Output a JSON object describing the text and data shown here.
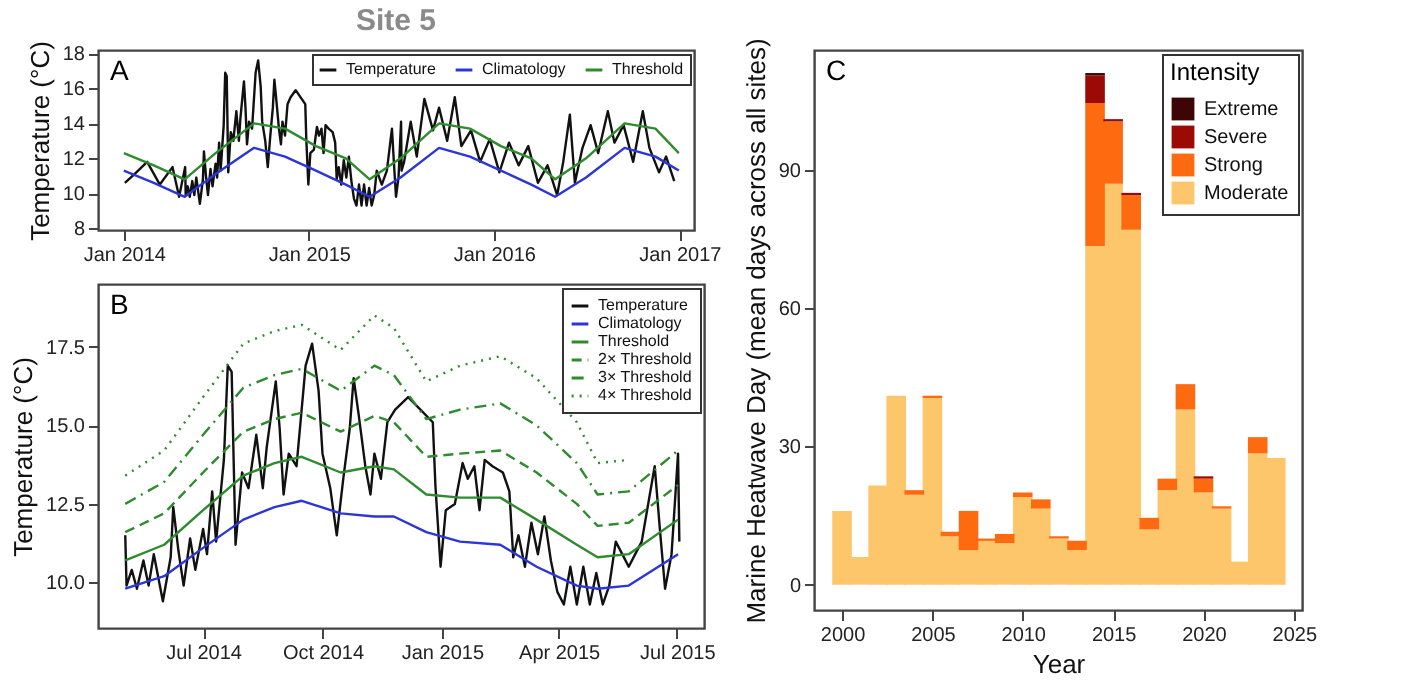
{
  "chart_data": [
    {
      "type": "line",
      "title": "Site 5",
      "ylabel": "Temperature (°C)",
      "annotations": [
        "A"
      ],
      "legend": "top right",
      "xlim": [
        "2013-11-11",
        "2017-01-30"
      ],
      "ylim": [
        7.9,
        18.2
      ],
      "xticks": [
        {
          "value": "2014-01-01",
          "label": "Jan 2014"
        },
        {
          "value": "2015-01-01",
          "label": "Jan 2015"
        },
        {
          "value": "2016-01-01",
          "label": "Jan 2016"
        },
        {
          "value": "2017-01-01",
          "label": "Jan 2017"
        }
      ],
      "yticks": [
        8,
        10,
        12,
        14,
        16,
        18
      ],
      "series": [
        {
          "name": "Temperature",
          "color": "#111111",
          "line_style": "solid",
          "x": [
            "2014-01-03",
            "2014-01-22",
            "2014-02-16",
            "2014-03-13",
            "2014-04-07",
            "2014-04-20",
            "2014-05-02",
            "2014-05-03",
            "2014-05-07",
            "2014-05-11",
            "2014-05-16",
            "2014-05-20",
            "2014-05-24",
            "2014-05-31",
            "2014-06-06",
            "2014-06-08",
            "2014-06-12",
            "2014-06-16",
            "2014-06-21",
            "2014-06-25",
            "2014-07-01",
            "2014-07-04",
            "2014-07-08",
            "2014-07-11",
            "2014-07-17",
            "2014-07-20",
            "2014-07-23",
            "2014-07-26",
            "2014-07-31",
            "2014-08-05",
            "2014-08-11",
            "2014-08-16",
            "2014-08-19",
            "2014-08-26",
            "2014-08-29",
            "2014-09-01",
            "2014-09-05",
            "2014-09-11",
            "2014-09-18",
            "2014-09-23",
            "2014-09-28",
            "2014-10-01",
            "2014-10-07",
            "2014-10-12",
            "2014-10-17",
            "2014-10-22",
            "2014-10-25",
            "2014-10-29",
            "2014-11-03",
            "2014-11-07",
            "2014-11-10",
            "2014-11-15",
            "2014-11-20",
            "2014-11-26",
            "2014-12-06",
            "2014-12-25",
            "2014-12-27",
            "2014-12-31",
            "2015-01-04",
            "2015-01-11",
            "2015-01-17",
            "2015-01-21",
            "2015-01-26",
            "2015-01-30",
            "2015-02-03",
            "2015-02-09",
            "2015-02-17",
            "2015-02-22",
            "2015-02-25",
            "2015-03-01",
            "2015-03-06",
            "2015-03-11",
            "2015-03-16",
            "2015-03-21",
            "2015-03-26",
            "2015-03-31",
            "2015-04-05",
            "2015-04-10",
            "2015-04-15",
            "2015-04-20",
            "2015-04-25",
            "2015-04-30",
            "2015-05-05",
            "2015-05-10",
            "2015-05-15",
            "2015-05-20",
            "2015-05-25",
            "2015-05-30",
            "2015-06-04",
            "2015-06-09",
            "2015-06-14",
            "2015-06-18",
            "2015-06-22",
            "2015-06-27",
            "2015-07-02",
            "2015-07-03",
            "2015-07-08",
            "2015-07-21",
            "2015-08-02",
            "2015-08-17",
            "2015-09-03",
            "2015-09-15",
            "2015-10-01",
            "2015-10-16",
            "2015-10-29",
            "2015-11-17",
            "2015-12-05",
            "2015-12-24",
            "2016-01-12",
            "2016-01-31",
            "2016-02-19",
            "2016-03-09",
            "2016-03-28",
            "2016-04-16",
            "2016-05-05",
            "2016-05-17",
            "2016-05-30",
            "2016-06-09",
            "2016-06-24",
            "2016-07-10",
            "2016-07-25",
            "2016-08-13",
            "2016-08-26",
            "2016-09-13",
            "2016-10-02",
            "2016-10-21",
            "2016-11-03",
            "2016-11-22",
            "2016-12-06",
            "2016-12-22"
          ],
          "values": [
            10.6,
            11.1,
            11.8,
            10.5,
            11.5,
            9.8,
            11.5,
            9.9,
            10.4,
            9.8,
            10.7,
            9.9,
            10.9,
            9.4,
            10.8,
            12.4,
            11.0,
            9.9,
            11.4,
            10.4,
            11.7,
            10.9,
            12.9,
            11.3,
            13.9,
            16.9,
            16.7,
            11.2,
            13.5,
            13.0,
            14.7,
            13.0,
            14.3,
            16.4,
            14.9,
            12.8,
            14.1,
            13.7,
            16.9,
            17.6,
            16.1,
            14.1,
            13.0,
            11.5,
            13.3,
            14.9,
            16.5,
            15.3,
            13.7,
            12.8,
            14.1,
            13.3,
            15.1,
            15.5,
            15.9,
            15.1,
            13.1,
            10.5,
            12.3,
            12.5,
            13.8,
            13.3,
            13.7,
            12.3,
            13.9,
            13.7,
            13.5,
            12.9,
            10.8,
            11.5,
            10.5,
            11.9,
            10.9,
            12.1,
            10.7,
            9.7,
            9.3,
            10.5,
            9.3,
            10.5,
            9.3,
            10.3,
            9.3,
            9.9,
            11.3,
            10.9,
            10.5,
            10.9,
            11.3,
            12.5,
            13.7,
            11.7,
            9.8,
            10.9,
            14.1,
            11.3,
            11.8,
            14.1,
            12.1,
            15.4,
            13.6,
            14.9,
            13.0,
            15.5,
            12.7,
            13.6,
            11.8,
            13.1,
            11.2,
            12.9,
            11.6,
            12.7,
            10.6,
            11.6,
            9.9,
            11.8,
            14.5,
            10.6,
            12.6,
            13.9,
            12.3,
            14.7,
            12.9,
            13.9,
            11.8,
            14.7,
            12.6,
            11.2,
            12.1,
            10.7
          ]
        },
        {
          "name": "Climatology",
          "color": "#2b35d8",
          "line_style": "solid",
          "x": [
            "2014-01-01",
            "2014-03-01",
            "2014-05-01",
            "2014-07-01",
            "2014-09-15",
            "2014-11-15",
            "2015-01-15",
            "2015-03-15",
            "2015-05-01",
            "2015-07-01",
            "2015-09-15",
            "2015-11-15",
            "2016-01-15",
            "2016-03-15",
            "2016-05-01",
            "2016-07-01",
            "2016-09-15",
            "2016-11-15",
            "2016-12-31"
          ],
          "values": [
            11.3,
            10.6,
            9.8,
            11.1,
            12.6,
            12.1,
            11.3,
            10.5,
            9.8,
            10.9,
            12.6,
            12.1,
            11.3,
            10.5,
            9.8,
            10.9,
            12.6,
            12.1,
            11.3
          ]
        },
        {
          "name": "Threshold",
          "color": "#2e8b2e",
          "line_style": "solid",
          "x": [
            "2014-01-01",
            "2014-03-01",
            "2014-05-01",
            "2014-07-01",
            "2014-09-15",
            "2014-11-15",
            "2015-01-15",
            "2015-03-15",
            "2015-05-01",
            "2015-07-01",
            "2015-09-15",
            "2015-11-15",
            "2016-01-15",
            "2016-03-15",
            "2016-05-01",
            "2016-07-01",
            "2016-09-15",
            "2016-11-15",
            "2016-12-31"
          ],
          "values": [
            12.3,
            11.6,
            10.8,
            12.3,
            14.0,
            13.7,
            12.7,
            12.0,
            10.8,
            12.0,
            14.0,
            13.7,
            12.7,
            12.0,
            10.8,
            12.0,
            14.0,
            13.7,
            12.3
          ]
        }
      ]
    },
    {
      "type": "line",
      "ylabel": "Temperature (°C)",
      "annotations": [
        "B"
      ],
      "legend": "top right",
      "xlim": [
        "2014-04-11",
        "2015-07-22"
      ],
      "ylim": [
        8.55,
        19.5
      ],
      "xticks": [
        {
          "value": "2014-07-01",
          "label": "Jul 2014"
        },
        {
          "value": "2014-10-01",
          "label": "Oct 2014"
        },
        {
          "value": "2015-01-01",
          "label": "Jan 2015"
        },
        {
          "value": "2015-04-01",
          "label": "Apr 2015"
        },
        {
          "value": "2015-07-01",
          "label": "Jul 2015"
        }
      ],
      "yticks": [
        {
          "value": 10,
          "label": "10.0"
        },
        {
          "value": 12.5,
          "label": "12.5"
        },
        {
          "value": 15,
          "label": "15.0"
        },
        {
          "value": 17.5,
          "label": "17.5"
        }
      ],
      "series": [
        {
          "name": "Temperature",
          "color": "#111111",
          "line_style": "solid",
          "x": [
            "2014-05-02",
            "2014-05-03",
            "2014-05-07",
            "2014-05-11",
            "2014-05-16",
            "2014-05-20",
            "2014-05-24",
            "2014-05-31",
            "2014-06-06",
            "2014-06-08",
            "2014-06-12",
            "2014-06-16",
            "2014-06-21",
            "2014-06-25",
            "2014-07-01",
            "2014-07-04",
            "2014-07-08",
            "2014-07-11",
            "2014-07-17",
            "2014-07-20",
            "2014-07-23",
            "2014-07-26",
            "2014-07-31",
            "2014-08-05",
            "2014-08-11",
            "2014-08-16",
            "2014-08-19",
            "2014-08-26",
            "2014-08-29",
            "2014-09-01",
            "2014-09-05",
            "2014-09-11",
            "2014-09-18",
            "2014-09-23",
            "2014-09-28",
            "2014-10-01",
            "2014-10-07",
            "2014-10-12",
            "2014-10-17",
            "2014-10-22",
            "2014-10-25",
            "2014-10-29",
            "2014-11-03",
            "2014-11-07",
            "2014-11-10",
            "2014-11-15",
            "2014-11-20",
            "2014-11-26",
            "2014-12-06",
            "2014-12-25",
            "2014-12-27",
            "2014-12-31",
            "2015-01-04",
            "2015-01-11",
            "2015-01-17",
            "2015-01-21",
            "2015-01-26",
            "2015-01-30",
            "2015-02-03",
            "2015-02-09",
            "2015-02-17",
            "2015-02-22",
            "2015-02-25",
            "2015-03-01",
            "2015-03-06",
            "2015-03-11",
            "2015-03-16",
            "2015-03-21",
            "2015-03-26",
            "2015-03-31",
            "2015-04-05",
            "2015-04-10",
            "2015-04-15",
            "2015-04-20",
            "2015-04-25",
            "2015-04-30",
            "2015-05-05",
            "2015-05-10",
            "2015-05-15",
            "2015-05-20",
            "2015-05-25",
            "2015-05-30",
            "2015-06-04",
            "2015-06-09",
            "2015-06-14",
            "2015-06-18",
            "2015-06-22",
            "2015-06-27",
            "2015-07-02",
            "2015-07-03"
          ],
          "values": [
            11.5,
            9.9,
            10.4,
            9.8,
            10.7,
            9.9,
            10.9,
            9.4,
            10.8,
            12.4,
            11.0,
            9.9,
            11.4,
            10.4,
            11.7,
            10.9,
            12.9,
            11.3,
            13.9,
            16.9,
            16.7,
            11.2,
            13.5,
            13.0,
            14.7,
            13.0,
            14.3,
            16.4,
            14.9,
            12.8,
            14.1,
            13.7,
            16.9,
            17.6,
            16.1,
            14.1,
            13.0,
            11.5,
            13.3,
            14.9,
            16.5,
            15.3,
            13.7,
            12.8,
            14.1,
            13.3,
            15.1,
            15.5,
            15.9,
            15.1,
            13.1,
            10.5,
            12.3,
            12.5,
            13.8,
            13.3,
            13.7,
            12.3,
            13.9,
            13.7,
            13.5,
            12.9,
            10.8,
            11.5,
            10.5,
            11.9,
            10.9,
            12.1,
            10.7,
            9.7,
            9.3,
            10.5,
            9.3,
            10.5,
            9.3,
            10.3,
            9.3,
            9.9,
            11.3,
            10.9,
            10.5,
            10.9,
            11.3,
            12.5,
            13.7,
            11.7,
            9.8,
            10.9,
            14.1,
            11.3
          ]
        },
        {
          "name": "Climatology",
          "color": "#2b35d8",
          "line_style": "solid",
          "x": [
            "2014-05-02",
            "2014-06-01",
            "2014-07-01",
            "2014-08-01",
            "2014-08-25",
            "2014-09-15",
            "2014-10-15",
            "2014-11-10",
            "2014-11-25",
            "2014-12-20",
            "2015-01-15",
            "2015-02-15",
            "2015-03-15",
            "2015-04-15",
            "2015-05-01",
            "2015-05-25",
            "2015-07-02"
          ],
          "values": [
            9.8,
            10.2,
            11.1,
            12.0,
            12.4,
            12.6,
            12.2,
            12.1,
            12.1,
            11.6,
            11.3,
            11.2,
            10.5,
            9.9,
            9.8,
            9.9,
            10.9
          ]
        },
        {
          "name": "Threshold",
          "color": "#2e8b2e",
          "line_style": "solid",
          "x": [
            "2014-05-02",
            "2014-06-01",
            "2014-07-01",
            "2014-08-01",
            "2014-08-25",
            "2014-09-15",
            "2014-10-15",
            "2014-11-10",
            "2014-11-25",
            "2014-12-20",
            "2015-01-15",
            "2015-02-15",
            "2015-03-15",
            "2015-04-15",
            "2015-05-01",
            "2015-05-25",
            "2015-07-02"
          ],
          "values": [
            10.7,
            11.2,
            12.3,
            13.4,
            13.8,
            14.0,
            13.5,
            13.7,
            13.6,
            12.8,
            12.7,
            12.7,
            12.0,
            11.2,
            10.8,
            10.9,
            12.0
          ]
        },
        {
          "name": "2× Threshold",
          "color": "#2e8b2e",
          "line_style": "dashed",
          "x": [
            "2014-05-02",
            "2014-06-01",
            "2014-07-01",
            "2014-08-01",
            "2014-08-25",
            "2014-09-15",
            "2014-10-15",
            "2014-11-10",
            "2014-11-25",
            "2014-12-20",
            "2015-01-15",
            "2015-02-15",
            "2015-03-15",
            "2015-04-15",
            "2015-05-01",
            "2015-05-25",
            "2015-07-02"
          ],
          "values": [
            11.6,
            12.2,
            13.5,
            14.8,
            15.2,
            15.4,
            14.8,
            15.3,
            15.1,
            14.0,
            14.1,
            14.2,
            13.5,
            12.5,
            11.8,
            11.9,
            13.1
          ]
        },
        {
          "name": "3× Threshold",
          "color": "#2e8b2e",
          "line_style": "dashdot",
          "x": [
            "2014-05-02",
            "2014-06-01",
            "2014-07-01",
            "2014-08-01",
            "2014-08-25",
            "2014-09-15",
            "2014-10-15",
            "2014-11-10",
            "2014-11-25",
            "2014-12-20",
            "2015-01-15",
            "2015-02-15",
            "2015-03-15",
            "2015-04-15",
            "2015-05-01",
            "2015-05-25",
            "2015-07-02"
          ],
          "values": [
            12.5,
            13.2,
            14.7,
            16.2,
            16.6,
            16.8,
            16.1,
            16.9,
            16.6,
            15.2,
            15.5,
            15.7,
            15.0,
            13.8,
            12.8,
            12.9,
            14.2
          ]
        },
        {
          "name": "4× Threshold",
          "color": "#2e8b2e",
          "line_style": "dotted",
          "x": [
            "2014-05-02",
            "2014-06-01",
            "2014-07-01",
            "2014-08-01",
            "2014-08-25",
            "2014-09-15",
            "2014-10-15",
            "2014-11-10",
            "2014-11-25",
            "2014-12-20",
            "2015-01-15",
            "2015-02-15",
            "2015-03-15",
            "2015-04-15",
            "2015-05-01",
            "2015-05-25"
          ],
          "values": [
            13.4,
            14.2,
            15.9,
            17.6,
            18.0,
            18.2,
            17.4,
            18.5,
            18.1,
            16.4,
            16.9,
            17.2,
            16.5,
            15.1,
            13.8,
            13.9
          ]
        }
      ]
    },
    {
      "type": "bar",
      "stacked": true,
      "xlabel": "Year",
      "ylabel": "Marine Heatwave Day (mean days across all sites)",
      "legend_title": "Intensity",
      "legend": "top right",
      "annotations": [
        "C"
      ],
      "x": [
        2000,
        2001,
        2002,
        2003,
        2004,
        2005,
        2006,
        2007,
        2008,
        2009,
        2010,
        2011,
        2012,
        2013,
        2014,
        2015,
        2016,
        2017,
        2018,
        2019,
        2020,
        2021,
        2022,
        2023,
        2024
      ],
      "xlim": [
        1998.45,
        2025.45
      ],
      "xticks": [
        2000,
        2005,
        2010,
        2015,
        2020,
        2025
      ],
      "ylim": [
        -5.5,
        116
      ],
      "yticks": [
        0,
        30,
        60,
        90
      ],
      "series": [
        {
          "name": "Moderate",
          "color": "#fec66b",
          "values": [
            16,
            6,
            21.5,
            41,
            19.5,
            40.5,
            10.5,
            7.5,
            9.5,
            9,
            19,
            16.5,
            10,
            7.5,
            73.5,
            87,
            77,
            12,
            20.5,
            38,
            20,
            16.5,
            5,
            28.5,
            27.5
          ]
        },
        {
          "name": "Strong",
          "color": "#fe6a10",
          "values": [
            0,
            0,
            0,
            0,
            1,
            0.5,
            1,
            8.5,
            0.5,
            2,
            1,
            2,
            0.5,
            2,
            31,
            13.5,
            7.5,
            2.5,
            2.5,
            5.5,
            3,
            0.5,
            0,
            3.5,
            0
          ]
        },
        {
          "name": "Severe",
          "color": "#9c0a06",
          "values": [
            0,
            0,
            0,
            0,
            0,
            0,
            0,
            0,
            0,
            0,
            0,
            0,
            0,
            0,
            6,
            0.5,
            0.5,
            0,
            0,
            0,
            0.5,
            0,
            0,
            0,
            0
          ]
        },
        {
          "name": "Extreme",
          "color": "#3e0505",
          "values": [
            0,
            0,
            0,
            0,
            0,
            0,
            0,
            0,
            0,
            0,
            0,
            0,
            0,
            0,
            0.5,
            0,
            0,
            0,
            0,
            0,
            0,
            0,
            0,
            0,
            0
          ]
        }
      ]
    }
  ]
}
